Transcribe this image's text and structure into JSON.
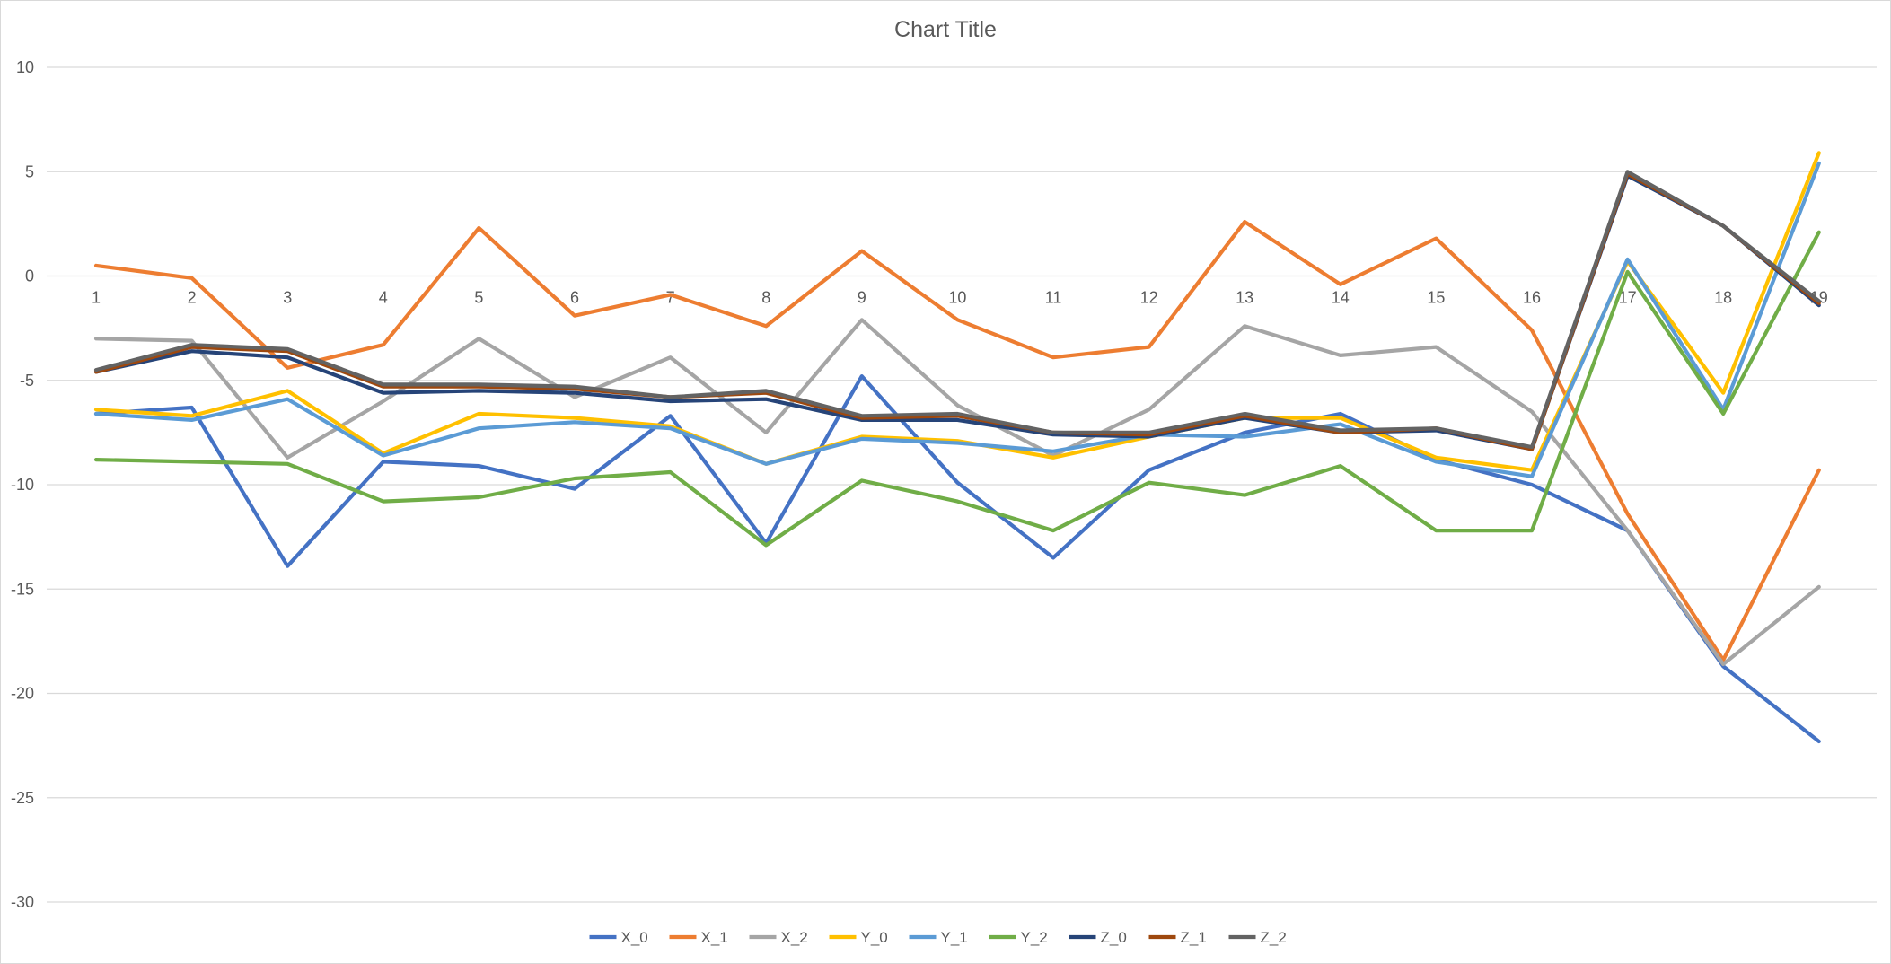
{
  "chart_data": {
    "type": "line",
    "title": "Chart Title",
    "xlabel": "",
    "ylabel": "",
    "ylim": [
      -30,
      10
    ],
    "yticks": [
      10,
      5,
      0,
      -5,
      -10,
      -15,
      -20,
      -25,
      -30
    ],
    "grid": true,
    "legend_position": "bottom",
    "categories": [
      "1",
      "2",
      "3",
      "4",
      "5",
      "6",
      "7",
      "8",
      "9",
      "10",
      "11",
      "12",
      "13",
      "14",
      "15",
      "16",
      "17",
      "18",
      "19"
    ],
    "series": [
      {
        "name": "X_0",
        "color": "#4472C4",
        "values": [
          -6.6,
          -6.3,
          -13.9,
          -8.9,
          -9.1,
          -10.2,
          -6.7,
          -12.8,
          -4.8,
          -9.9,
          -13.5,
          -9.3,
          -7.5,
          -6.6,
          -8.8,
          -10,
          -12.2,
          -18.7,
          -22.3
        ]
      },
      {
        "name": "X_1",
        "color": "#ED7D31",
        "values": [
          0.5,
          -0.1,
          -4.4,
          -3.3,
          2.3,
          -1.9,
          -0.9,
          -2.4,
          1.2,
          -2.1,
          -3.9,
          -3.4,
          2.6,
          -0.4,
          1.8,
          -2.6,
          -11.4,
          -18.4,
          -9.3
        ]
      },
      {
        "name": "X_2",
        "color": "#A5A5A5",
        "values": [
          -3,
          -3.1,
          -8.7,
          -6,
          -3,
          -5.8,
          -3.9,
          -7.5,
          -2.1,
          -6.2,
          -8.6,
          -6.4,
          -2.4,
          -3.8,
          -3.4,
          -6.5,
          -12.2,
          -18.6,
          -14.9
        ]
      },
      {
        "name": "Y_0",
        "color": "#FFC000",
        "values": [
          -6.4,
          -6.7,
          -5.5,
          -8.5,
          -6.6,
          -6.8,
          -7.2,
          -9,
          -7.7,
          -7.9,
          -8.7,
          -7.7,
          -6.8,
          -6.8,
          -8.7,
          -9.3,
          0.7,
          -5.6,
          5.9
        ]
      },
      {
        "name": "Y_1",
        "color": "#5B9BD5",
        "values": [
          -6.6,
          -6.9,
          -5.9,
          -8.6,
          -7.3,
          -7,
          -7.3,
          -9,
          -7.8,
          -8,
          -8.4,
          -7.6,
          -7.7,
          -7.1,
          -8.9,
          -9.6,
          0.8,
          -6.4,
          5.4
        ]
      },
      {
        "name": "Y_2",
        "color": "#70AD47",
        "values": [
          -8.8,
          -8.9,
          -9,
          -10.8,
          -10.6,
          -9.7,
          -9.4,
          -12.9,
          -9.8,
          -10.8,
          -12.2,
          -9.9,
          -10.5,
          -9.1,
          -12.2,
          -12.2,
          0.2,
          -6.6,
          2.1
        ]
      },
      {
        "name": "Z_0",
        "color": "#264478",
        "values": [
          -4.6,
          -3.6,
          -3.9,
          -5.6,
          -5.5,
          -5.6,
          -6,
          -5.9,
          -6.9,
          -6.9,
          -7.6,
          -7.7,
          -6.8,
          -7.5,
          -7.4,
          -8.3,
          4.8,
          2.4,
          -1.4
        ]
      },
      {
        "name": "Z_1",
        "color": "#9E480E",
        "values": [
          -4.6,
          -3.4,
          -3.6,
          -5.3,
          -5.3,
          -5.4,
          -5.8,
          -5.6,
          -6.8,
          -6.7,
          -7.5,
          -7.6,
          -6.7,
          -7.5,
          -7.3,
          -8.3,
          4.9,
          2.4,
          -1.3
        ]
      },
      {
        "name": "Z_2",
        "color": "#636363",
        "values": [
          -4.5,
          -3.3,
          -3.5,
          -5.2,
          -5.2,
          -5.3,
          -5.8,
          -5.5,
          -6.7,
          -6.6,
          -7.5,
          -7.5,
          -6.6,
          -7.4,
          -7.3,
          -8.2,
          5,
          2.4,
          -1.2
        ]
      }
    ]
  }
}
